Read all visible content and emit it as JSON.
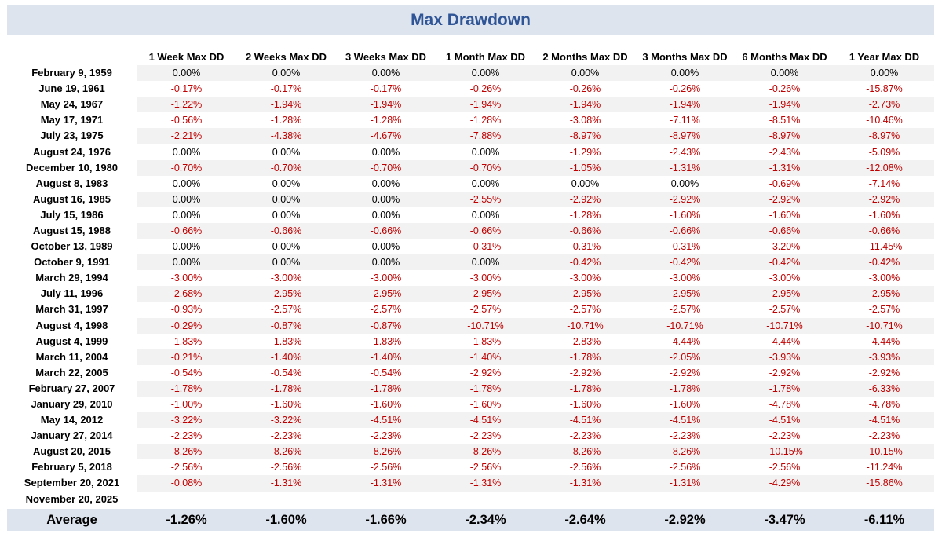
{
  "title": "Max Drawdown",
  "columns": [
    "1 Week Max DD",
    "2 Weeks Max DD",
    "3 Weeks Max DD",
    "1 Month Max DD",
    "2 Months Max DD",
    "3 Months Max DD",
    "6 Months Max DD",
    "1 Year Max DD"
  ],
  "rows": [
    {
      "date": "February 9, 1959",
      "values": [
        "0.00%",
        "0.00%",
        "0.00%",
        "0.00%",
        "0.00%",
        "0.00%",
        "0.00%",
        "0.00%"
      ]
    },
    {
      "date": "June 19, 1961",
      "values": [
        "-0.17%",
        "-0.17%",
        "-0.17%",
        "-0.26%",
        "-0.26%",
        "-0.26%",
        "-0.26%",
        "-15.87%"
      ]
    },
    {
      "date": "May 24, 1967",
      "values": [
        "-1.22%",
        "-1.94%",
        "-1.94%",
        "-1.94%",
        "-1.94%",
        "-1.94%",
        "-1.94%",
        "-2.73%"
      ]
    },
    {
      "date": "May 17, 1971",
      "values": [
        "-0.56%",
        "-1.28%",
        "-1.28%",
        "-1.28%",
        "-3.08%",
        "-7.11%",
        "-8.51%",
        "-10.46%"
      ]
    },
    {
      "date": "July 23, 1975",
      "values": [
        "-2.21%",
        "-4.38%",
        "-4.67%",
        "-7.88%",
        "-8.97%",
        "-8.97%",
        "-8.97%",
        "-8.97%"
      ]
    },
    {
      "date": "August 24, 1976",
      "values": [
        "0.00%",
        "0.00%",
        "0.00%",
        "0.00%",
        "-1.29%",
        "-2.43%",
        "-2.43%",
        "-5.09%"
      ]
    },
    {
      "date": "December 10, 1980",
      "values": [
        "-0.70%",
        "-0.70%",
        "-0.70%",
        "-0.70%",
        "-1.05%",
        "-1.31%",
        "-1.31%",
        "-12.08%"
      ]
    },
    {
      "date": "August 8, 1983",
      "values": [
        "0.00%",
        "0.00%",
        "0.00%",
        "0.00%",
        "0.00%",
        "0.00%",
        "-0.69%",
        "-7.14%"
      ]
    },
    {
      "date": "August 16, 1985",
      "values": [
        "0.00%",
        "0.00%",
        "0.00%",
        "-2.55%",
        "-2.92%",
        "-2.92%",
        "-2.92%",
        "-2.92%"
      ]
    },
    {
      "date": "July 15, 1986",
      "values": [
        "0.00%",
        "0.00%",
        "0.00%",
        "0.00%",
        "-1.28%",
        "-1.60%",
        "-1.60%",
        "-1.60%"
      ]
    },
    {
      "date": "August 15, 1988",
      "values": [
        "-0.66%",
        "-0.66%",
        "-0.66%",
        "-0.66%",
        "-0.66%",
        "-0.66%",
        "-0.66%",
        "-0.66%"
      ]
    },
    {
      "date": "October 13, 1989",
      "values": [
        "0.00%",
        "0.00%",
        "0.00%",
        "-0.31%",
        "-0.31%",
        "-0.31%",
        "-3.20%",
        "-11.45%"
      ]
    },
    {
      "date": "October 9, 1991",
      "values": [
        "0.00%",
        "0.00%",
        "0.00%",
        "0.00%",
        "-0.42%",
        "-0.42%",
        "-0.42%",
        "-0.42%"
      ]
    },
    {
      "date": "March 29, 1994",
      "values": [
        "-3.00%",
        "-3.00%",
        "-3.00%",
        "-3.00%",
        "-3.00%",
        "-3.00%",
        "-3.00%",
        "-3.00%"
      ]
    },
    {
      "date": "July 11, 1996",
      "values": [
        "-2.68%",
        "-2.95%",
        "-2.95%",
        "-2.95%",
        "-2.95%",
        "-2.95%",
        "-2.95%",
        "-2.95%"
      ]
    },
    {
      "date": "March 31, 1997",
      "values": [
        "-0.93%",
        "-2.57%",
        "-2.57%",
        "-2.57%",
        "-2.57%",
        "-2.57%",
        "-2.57%",
        "-2.57%"
      ]
    },
    {
      "date": "August 4, 1998",
      "values": [
        "-0.29%",
        "-0.87%",
        "-0.87%",
        "-10.71%",
        "-10.71%",
        "-10.71%",
        "-10.71%",
        "-10.71%"
      ]
    },
    {
      "date": "August 4, 1999",
      "values": [
        "-1.83%",
        "-1.83%",
        "-1.83%",
        "-1.83%",
        "-2.83%",
        "-4.44%",
        "-4.44%",
        "-4.44%"
      ]
    },
    {
      "date": "March 11, 2004",
      "values": [
        "-0.21%",
        "-1.40%",
        "-1.40%",
        "-1.40%",
        "-1.78%",
        "-2.05%",
        "-3.93%",
        "-3.93%"
      ]
    },
    {
      "date": "March 22, 2005",
      "values": [
        "-0.54%",
        "-0.54%",
        "-0.54%",
        "-2.92%",
        "-2.92%",
        "-2.92%",
        "-2.92%",
        "-2.92%"
      ]
    },
    {
      "date": "February 27, 2007",
      "values": [
        "-1.78%",
        "-1.78%",
        "-1.78%",
        "-1.78%",
        "-1.78%",
        "-1.78%",
        "-1.78%",
        "-6.33%"
      ]
    },
    {
      "date": "January 29, 2010",
      "values": [
        "-1.00%",
        "-1.60%",
        "-1.60%",
        "-1.60%",
        "-1.60%",
        "-1.60%",
        "-4.78%",
        "-4.78%"
      ]
    },
    {
      "date": "May 14, 2012",
      "values": [
        "-3.22%",
        "-3.22%",
        "-4.51%",
        "-4.51%",
        "-4.51%",
        "-4.51%",
        "-4.51%",
        "-4.51%"
      ]
    },
    {
      "date": "January 27, 2014",
      "values": [
        "-2.23%",
        "-2.23%",
        "-2.23%",
        "-2.23%",
        "-2.23%",
        "-2.23%",
        "-2.23%",
        "-2.23%"
      ]
    },
    {
      "date": "August 20, 2015",
      "values": [
        "-8.26%",
        "-8.26%",
        "-8.26%",
        "-8.26%",
        "-8.26%",
        "-8.26%",
        "-10.15%",
        "-10.15%"
      ]
    },
    {
      "date": "February 5, 2018",
      "values": [
        "-2.56%",
        "-2.56%",
        "-2.56%",
        "-2.56%",
        "-2.56%",
        "-2.56%",
        "-2.56%",
        "-11.24%"
      ]
    },
    {
      "date": "September 20, 2021",
      "values": [
        "-0.08%",
        "-1.31%",
        "-1.31%",
        "-1.31%",
        "-1.31%",
        "-1.31%",
        "-4.29%",
        "-15.86%"
      ]
    },
    {
      "date": "November 20, 2025",
      "values": [
        "",
        "",
        "",
        "",
        "",
        "",
        "",
        ""
      ]
    }
  ],
  "average": {
    "label": "Average",
    "values": [
      "-1.26%",
      "-1.60%",
      "-1.66%",
      "-2.34%",
      "-2.64%",
      "-2.92%",
      "-3.47%",
      "-6.11%"
    ]
  },
  "colors": {
    "negative": "#c00000",
    "title": "#2f5597",
    "band": "#dde4ee",
    "stripe": "#f2f2f2"
  }
}
